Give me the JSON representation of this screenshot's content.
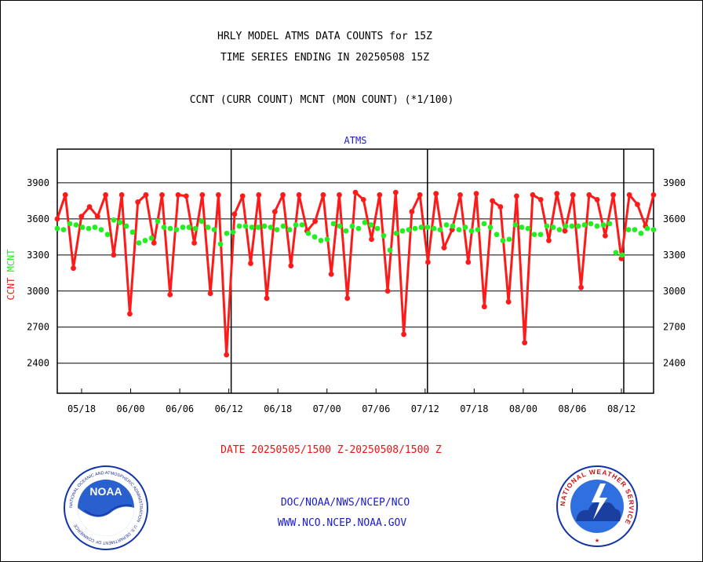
{
  "header": {
    "title_line1": "HRLY MODEL ATMS DATA COUNTS for 15Z",
    "title_line2": "TIME SERIES ENDING IN 20250508 15Z",
    "subtitle": "CCNT (CURR COUNT) MCNT (MON COUNT) (*1/100)"
  },
  "footer": {
    "date_range": "DATE 20250505/1500 Z-20250508/1500 Z",
    "org": "DOC/NOAA/NWS/NCEP/NCO",
    "url": "WWW.NCO.NCEP.NOAA.GOV"
  },
  "logos": {
    "left_name": "NOAA",
    "left_ring_text": "NATIONAL OCEANIC AND ATMOSPHERIC ADMINISTRATION · U.S. DEPARTMENT OF COMMERCE",
    "right_ring_text": "NATIONAL WEATHER SERVICE"
  },
  "colors": {
    "ccnt": "#ff1a1a",
    "mcnt": "#22ee22",
    "label_blue": "#1a1acc",
    "date_red": "#ee1111"
  },
  "chart_data": {
    "type": "line",
    "title": "ATMS",
    "ylabel_left": [
      "CCNT",
      "MCNT"
    ],
    "ylim": [
      2150,
      4180
    ],
    "yticks": [
      2400,
      2700,
      3000,
      3300,
      3600,
      3900
    ],
    "x_range": [
      "05/13",
      "08/15"
    ],
    "x_ticks": [
      "05/18",
      "06/00",
      "06/06",
      "06/12",
      "06/18",
      "07/00",
      "07/06",
      "07/12",
      "07/18",
      "08/00",
      "08/06",
      "08/12"
    ],
    "day_boundaries": [
      "06/12",
      "07/12",
      "08/12"
    ],
    "grid": true,
    "series": [
      {
        "name": "CCNT",
        "values": [
          3600,
          3800,
          3190,
          3620,
          3700,
          3620,
          3800,
          3300,
          3800,
          2810,
          3740,
          3800,
          3400,
          3800,
          2970,
          3800,
          3790,
          3400,
          3800,
          2980,
          3800,
          2470,
          3640,
          3790,
          3230,
          3800,
          2940,
          3660,
          3800,
          3210,
          3800,
          3500,
          3580,
          3800,
          3140,
          3800,
          2940,
          3820,
          3760,
          3430,
          3800,
          3000,
          3820,
          2640,
          3660,
          3800,
          3240,
          3810,
          3360,
          3510,
          3800,
          3240,
          3810,
          2870,
          3750,
          3700,
          2910,
          3790,
          2570,
          3800,
          3760,
          3420,
          3810,
          3500,
          3800,
          3030,
          3800,
          3760,
          3460,
          3800,
          3270,
          3800,
          3720,
          3540,
          3800
        ]
      },
      {
        "name": "MCNT",
        "values": [
          3520,
          3510,
          3560,
          3550,
          3530,
          3520,
          3530,
          3510,
          3470,
          3590,
          3570,
          3540,
          3490,
          3400,
          3420,
          3440,
          3580,
          3530,
          3520,
          3510,
          3530,
          3530,
          3520,
          3580,
          3530,
          3510,
          3390,
          3480,
          3490,
          3540,
          3540,
          3530,
          3530,
          3540,
          3530,
          3510,
          3540,
          3510,
          3550,
          3550,
          3480,
          3450,
          3420,
          3430,
          3560,
          3540,
          3500,
          3540,
          3520,
          3570,
          3550,
          3520,
          3460,
          3340,
          3480,
          3500,
          3510,
          3520,
          3530,
          3530,
          3520,
          3510,
          3550,
          3540,
          3510,
          3530,
          3500,
          3510,
          3560,
          3530,
          3470,
          3420,
          3430,
          3550,
          3530,
          3520,
          3470,
          3470,
          3540,
          3530,
          3510,
          3540,
          3540,
          3540,
          3550,
          3560,
          3540,
          3550,
          3560,
          3320,
          3300,
          3510,
          3510,
          3480,
          3520,
          3510
        ]
      }
    ]
  }
}
